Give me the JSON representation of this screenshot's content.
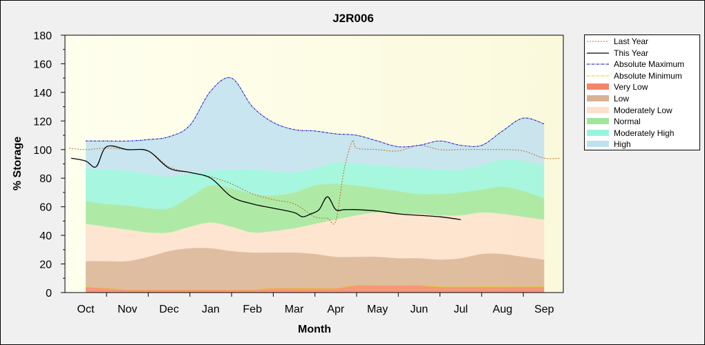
{
  "chart_data": {
    "type": "area",
    "title": "J2R006",
    "xlabel": "Month",
    "ylabel": "% Storage",
    "ylim": [
      0,
      180
    ],
    "yticks": [
      0,
      20,
      40,
      60,
      80,
      100,
      120,
      140,
      160,
      180
    ],
    "categories": [
      "Oct",
      "Nov",
      "Dec",
      "Jan",
      "Feb",
      "Mar",
      "Apr",
      "May",
      "Jun",
      "Jul",
      "Aug",
      "Sep"
    ],
    "grid": false,
    "legend_position": "right",
    "band_x": [
      0,
      0.5,
      1,
      1.5,
      2,
      2.5,
      3,
      3.5,
      4,
      4.5,
      5,
      5.5,
      6,
      6.5,
      7,
      7.5,
      8,
      8.5,
      9,
      9.5,
      10,
      10.5,
      11
    ],
    "bands": [
      {
        "name": "Very Low",
        "color": "#f58567",
        "lower": [
          0,
          0,
          0,
          0,
          0,
          0,
          0,
          0,
          0,
          0,
          0,
          0,
          0,
          0,
          0,
          0,
          0,
          0,
          0,
          0,
          0,
          0,
          0
        ],
        "upper": [
          4,
          3,
          2,
          2,
          2,
          2,
          2,
          2,
          2,
          3,
          3,
          3,
          3,
          5,
          5,
          5,
          5,
          4,
          4,
          4,
          4,
          4,
          4
        ]
      },
      {
        "name": "Low",
        "color": "#d9b193",
        "lower": [
          4,
          3,
          2,
          2,
          2,
          2,
          2,
          2,
          2,
          3,
          3,
          3,
          3,
          5,
          5,
          5,
          5,
          4,
          4,
          4,
          4,
          4,
          4
        ],
        "upper": [
          22,
          22,
          22,
          25,
          29,
          31,
          31,
          29,
          28,
          28,
          28,
          27,
          25,
          25,
          25,
          24,
          24,
          23,
          24,
          27,
          27,
          25,
          23
        ]
      },
      {
        "name": "Moderately Low",
        "color": "#fde0cc",
        "lower": [
          22,
          22,
          22,
          25,
          29,
          31,
          31,
          29,
          28,
          28,
          28,
          27,
          25,
          25,
          25,
          24,
          24,
          23,
          24,
          27,
          27,
          25,
          23
        ],
        "upper": [
          48,
          46,
          44,
          42,
          42,
          46,
          49,
          46,
          42,
          43,
          45,
          48,
          51,
          54,
          56,
          55,
          55,
          54,
          54,
          56,
          55,
          53,
          51
        ]
      },
      {
        "name": "Normal",
        "color": "#a0e69a",
        "lower": [
          48,
          46,
          44,
          42,
          42,
          46,
          49,
          46,
          42,
          43,
          45,
          48,
          51,
          54,
          56,
          55,
          55,
          54,
          54,
          56,
          55,
          53,
          51
        ],
        "upper": [
          64,
          62,
          61,
          59,
          59,
          67,
          75,
          73,
          69,
          68,
          70,
          75,
          76,
          75,
          73,
          71,
          69,
          69,
          70,
          72,
          74,
          71,
          66
        ]
      },
      {
        "name": "Moderately High",
        "color": "#98f5dd",
        "lower": [
          64,
          62,
          61,
          59,
          59,
          67,
          75,
          73,
          69,
          68,
          70,
          75,
          76,
          75,
          73,
          71,
          69,
          69,
          70,
          72,
          74,
          71,
          66
        ],
        "upper": [
          87,
          86,
          85,
          83,
          81,
          83,
          85,
          86,
          86,
          85,
          84,
          87,
          91,
          90,
          89,
          88,
          87,
          86,
          86,
          89,
          93,
          92,
          89
        ]
      },
      {
        "name": "High",
        "color": "#bfe0f0",
        "lower": [
          87,
          86,
          85,
          83,
          81,
          83,
          85,
          86,
          86,
          85,
          84,
          87,
          91,
          90,
          89,
          88,
          87,
          86,
          86,
          89,
          93,
          92,
          89
        ],
        "upper": [
          106,
          106,
          106,
          107,
          109,
          117,
          141,
          150,
          130,
          119,
          114,
          113,
          111,
          110,
          106,
          102,
          103,
          106,
          103,
          103,
          113,
          122,
          118
        ]
      }
    ],
    "series": [
      {
        "name": "Last Year",
        "color": "#c06820",
        "style": "dotted",
        "x": [
          -0.4,
          0,
          0.5,
          1,
          1.5,
          2,
          2.5,
          3,
          3.5,
          4,
          4.5,
          5,
          5.5,
          5.8,
          6,
          6.2,
          6.4,
          6.5,
          7,
          7.5,
          8,
          8.5,
          9,
          9.5,
          10,
          10.5,
          11,
          11.4
        ],
        "y": [
          101,
          100,
          101,
          100,
          99,
          88,
          84,
          81,
          76,
          69,
          65,
          62,
          53,
          52,
          50,
          86,
          106,
          101,
          100,
          99,
          103,
          100,
          100,
          100,
          100,
          99,
          94,
          94
        ]
      },
      {
        "name": "This Year",
        "color": "#000000",
        "style": "solid",
        "x": [
          -0.35,
          0,
          0.25,
          0.5,
          1,
          1.5,
          2,
          2.5,
          3,
          3.5,
          4,
          4.5,
          5,
          5.2,
          5.4,
          5.6,
          5.8,
          6,
          6.2,
          6.5,
          7,
          7.5,
          8,
          8.5,
          9
        ],
        "y": [
          94,
          92,
          88,
          102,
          100,
          99,
          87,
          84,
          80,
          67,
          62,
          59,
          56,
          53,
          55,
          58,
          67,
          58,
          58,
          58,
          57,
          55,
          54,
          53,
          51
        ]
      },
      {
        "name": "Absolute Maximum",
        "color": "#0000cc",
        "style": "dashdot",
        "x": [
          0,
          0.5,
          1,
          1.5,
          2,
          2.5,
          3,
          3.5,
          4,
          4.5,
          5,
          5.5,
          6,
          6.5,
          7,
          7.5,
          8,
          8.5,
          9,
          9.5,
          10,
          10.5,
          11
        ],
        "y": [
          106,
          106,
          106,
          107,
          109,
          117,
          141,
          150,
          130,
          119,
          114,
          113,
          111,
          110,
          106,
          102,
          103,
          106,
          103,
          103,
          113,
          122,
          118
        ]
      },
      {
        "name": "Absolute Minimum",
        "color": "#e6d200",
        "style": "dashdot",
        "x": [
          0,
          0.5,
          1,
          1.5,
          2,
          2.5,
          3,
          3.5,
          4,
          4.5,
          5,
          5.5,
          6,
          6.5,
          7,
          7.5,
          8,
          8.5,
          9,
          9.5,
          10,
          10.5,
          11
        ],
        "y": [
          4,
          3,
          2,
          2,
          2,
          2,
          2,
          2,
          2,
          3,
          3,
          3,
          3,
          5,
          5,
          5,
          5,
          4,
          4,
          4,
          4,
          4,
          4
        ]
      }
    ]
  },
  "legend": {
    "items": [
      {
        "label": "Last Year",
        "kind": "line",
        "color": "#c06820",
        "dash": "2,2"
      },
      {
        "label": "This Year",
        "kind": "line",
        "color": "#000000",
        "dash": ""
      },
      {
        "label": "Absolute Maximum",
        "kind": "line",
        "color": "#0000cc",
        "dash": "4,1,1,1"
      },
      {
        "label": "Absolute Minimum",
        "kind": "line",
        "color": "#e6d200",
        "dash": "4,1,1,1"
      },
      {
        "label": "Very Low",
        "kind": "band",
        "color": "#f58567"
      },
      {
        "label": "Low",
        "kind": "band",
        "color": "#d9b193"
      },
      {
        "label": "Moderately Low",
        "kind": "band",
        "color": "#fde0cc"
      },
      {
        "label": "Normal",
        "kind": "band",
        "color": "#a0e69a"
      },
      {
        "label": "Moderately High",
        "kind": "band",
        "color": "#98f5dd"
      },
      {
        "label": "High",
        "kind": "band",
        "color": "#bfe0f0"
      }
    ]
  }
}
